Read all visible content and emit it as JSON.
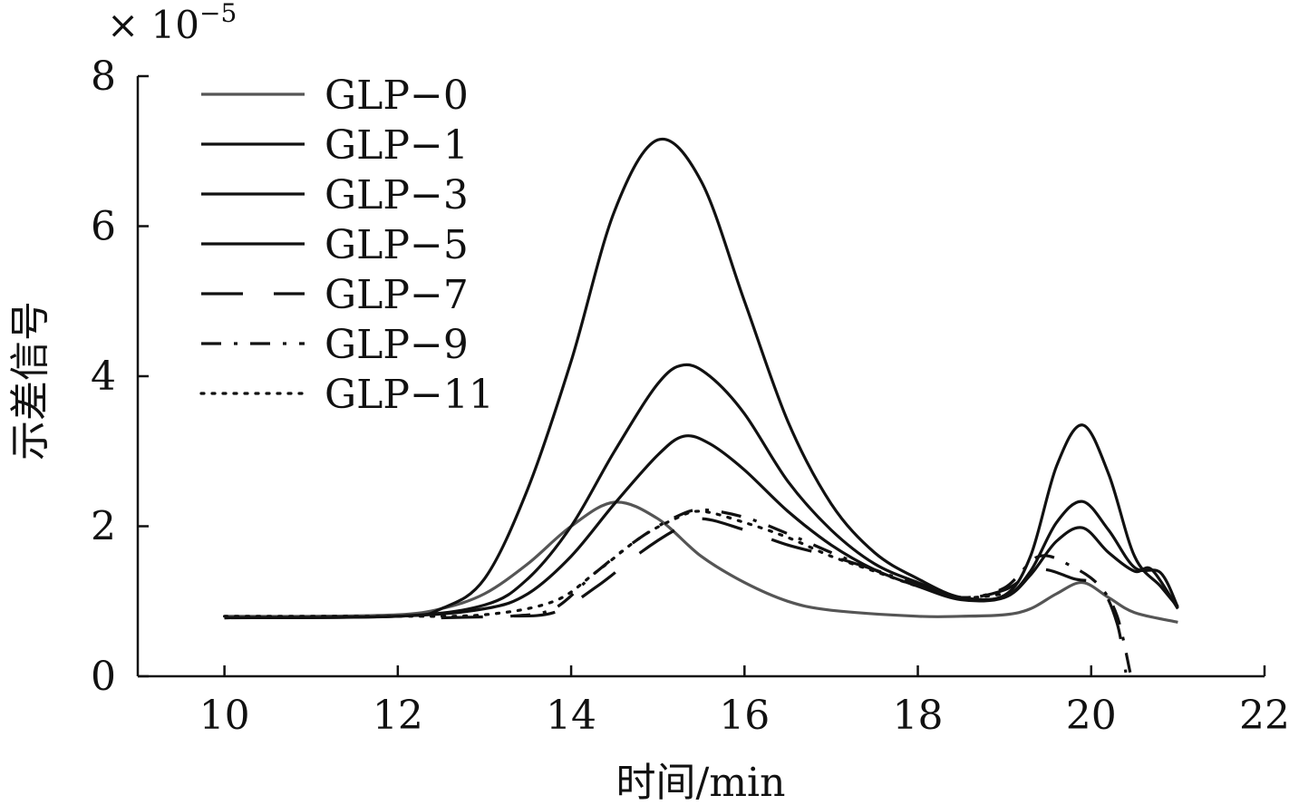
{
  "chart_data": {
    "type": "line",
    "xlabel": "时间/min",
    "ylabel": "示差信号",
    "y_multiplier": "× 10",
    "y_multiplier_exp": "−5",
    "xlim": [
      9,
      22
    ],
    "ylim": [
      0,
      8
    ],
    "xticks": [
      10,
      12,
      14,
      16,
      18,
      20,
      22
    ],
    "yticks": [
      0,
      2,
      4,
      6,
      8
    ],
    "grid": false,
    "legend_position": "top-left",
    "series": [
      {
        "name": "GLP−0",
        "color": "#555555",
        "style": "solid",
        "points": [
          [
            10,
            0.8
          ],
          [
            11,
            0.8
          ],
          [
            12,
            0.82
          ],
          [
            12.5,
            0.9
          ],
          [
            13,
            1.1
          ],
          [
            13.5,
            1.5
          ],
          [
            14,
            2.0
          ],
          [
            14.5,
            2.32
          ],
          [
            15,
            2.1
          ],
          [
            15.5,
            1.6
          ],
          [
            16,
            1.25
          ],
          [
            16.5,
            1.0
          ],
          [
            17,
            0.88
          ],
          [
            18,
            0.8
          ],
          [
            18.5,
            0.8
          ],
          [
            19,
            0.82
          ],
          [
            19.3,
            0.9
          ],
          [
            19.6,
            1.1
          ],
          [
            19.9,
            1.25
          ],
          [
            20.2,
            1.05
          ],
          [
            20.5,
            0.85
          ],
          [
            21,
            0.72
          ]
        ]
      },
      {
        "name": "GLP−1",
        "color": "#111111",
        "style": "solid",
        "points": [
          [
            10,
            0.78
          ],
          [
            12,
            0.8
          ],
          [
            12.5,
            0.9
          ],
          [
            13,
            1.3
          ],
          [
            13.5,
            2.5
          ],
          [
            14,
            4.2
          ],
          [
            14.5,
            6.2
          ],
          [
            15,
            7.15
          ],
          [
            15.5,
            6.6
          ],
          [
            16,
            5.0
          ],
          [
            16.5,
            3.4
          ],
          [
            17,
            2.3
          ],
          [
            17.5,
            1.65
          ],
          [
            18,
            1.3
          ],
          [
            18.5,
            1.05
          ],
          [
            19,
            1.08
          ],
          [
            19.3,
            1.6
          ],
          [
            19.6,
            2.8
          ],
          [
            19.9,
            3.35
          ],
          [
            20.2,
            2.7
          ],
          [
            20.5,
            1.6
          ],
          [
            20.8,
            1.2
          ],
          [
            21,
            0.92
          ]
        ]
      },
      {
        "name": "GLP−3",
        "color": "#111111",
        "style": "solid",
        "points": [
          [
            10,
            0.78
          ],
          [
            12,
            0.8
          ],
          [
            13,
            0.95
          ],
          [
            13.5,
            1.3
          ],
          [
            14,
            2.0
          ],
          [
            14.5,
            3.0
          ],
          [
            15,
            3.9
          ],
          [
            15.3,
            4.15
          ],
          [
            15.6,
            4.0
          ],
          [
            16,
            3.5
          ],
          [
            16.5,
            2.6
          ],
          [
            17,
            1.95
          ],
          [
            17.5,
            1.5
          ],
          [
            18,
            1.25
          ],
          [
            18.5,
            1.05
          ],
          [
            19,
            1.06
          ],
          [
            19.3,
            1.4
          ],
          [
            19.6,
            2.05
          ],
          [
            19.9,
            2.33
          ],
          [
            20.2,
            1.95
          ],
          [
            20.5,
            1.45
          ],
          [
            20.8,
            1.38
          ],
          [
            21,
            0.92
          ]
        ]
      },
      {
        "name": "GLP−5",
        "color": "#111111",
        "style": "solid",
        "points": [
          [
            10,
            0.78
          ],
          [
            12,
            0.8
          ],
          [
            13,
            0.9
          ],
          [
            13.5,
            1.1
          ],
          [
            14,
            1.6
          ],
          [
            14.5,
            2.3
          ],
          [
            15,
            2.95
          ],
          [
            15.3,
            3.2
          ],
          [
            15.6,
            3.1
          ],
          [
            16,
            2.75
          ],
          [
            16.5,
            2.2
          ],
          [
            17,
            1.75
          ],
          [
            17.5,
            1.42
          ],
          [
            18,
            1.2
          ],
          [
            18.5,
            1.02
          ],
          [
            19,
            1.05
          ],
          [
            19.3,
            1.35
          ],
          [
            19.6,
            1.8
          ],
          [
            19.9,
            1.98
          ],
          [
            20.2,
            1.65
          ],
          [
            20.5,
            1.4
          ],
          [
            20.7,
            1.42
          ],
          [
            21,
            0.9
          ]
        ]
      },
      {
        "name": "GLP−7",
        "color": "#111111",
        "style": "longdash",
        "points": [
          [
            12.5,
            0.78
          ],
          [
            13.2,
            0.8
          ],
          [
            13.8,
            0.85
          ],
          [
            14.3,
            1.2
          ],
          [
            14.8,
            1.65
          ],
          [
            15.2,
            1.95
          ],
          [
            15.5,
            2.1
          ],
          [
            16,
            1.95
          ],
          [
            16.5,
            1.75
          ],
          [
            17,
            1.6
          ],
          [
            17.5,
            1.42
          ],
          [
            18,
            1.22
          ],
          [
            18.5,
            1.05
          ],
          [
            19,
            1.15
          ],
          [
            19.4,
            1.42
          ],
          [
            19.8,
            1.3
          ],
          [
            20.1,
            1.2
          ],
          [
            20.3,
            0.7
          ],
          [
            20.4,
            0.05
          ]
        ]
      },
      {
        "name": "GLP−9",
        "color": "#111111",
        "style": "dashdot",
        "points": [
          [
            13.3,
            0.8
          ],
          [
            13.8,
            0.9
          ],
          [
            14.3,
            1.4
          ],
          [
            14.8,
            1.85
          ],
          [
            15.2,
            2.12
          ],
          [
            15.5,
            2.22
          ],
          [
            16,
            2.12
          ],
          [
            16.5,
            1.9
          ],
          [
            17,
            1.65
          ],
          [
            17.5,
            1.42
          ],
          [
            18,
            1.22
          ],
          [
            18.5,
            1.05
          ],
          [
            19,
            1.18
          ],
          [
            19.4,
            1.6
          ],
          [
            19.8,
            1.45
          ],
          [
            20.1,
            1.2
          ],
          [
            20.3,
            0.8
          ],
          [
            20.45,
            0.05
          ]
        ]
      },
      {
        "name": "GLP−11",
        "color": "#111111",
        "style": "dotted",
        "points": [
          [
            10,
            0.8
          ],
          [
            11,
            0.8
          ],
          [
            12,
            0.8
          ],
          [
            13,
            0.82
          ],
          [
            13.8,
            1.0
          ],
          [
            14.3,
            1.4
          ],
          [
            14.8,
            1.85
          ],
          [
            15.2,
            2.1
          ],
          [
            15.5,
            2.2
          ],
          [
            16,
            2.05
          ],
          [
            16.5,
            1.85
          ],
          [
            17,
            1.6
          ],
          [
            17.5,
            1.4
          ],
          [
            18,
            1.2
          ],
          [
            18.5,
            1.05
          ],
          [
            19,
            1.1
          ]
        ]
      }
    ]
  }
}
